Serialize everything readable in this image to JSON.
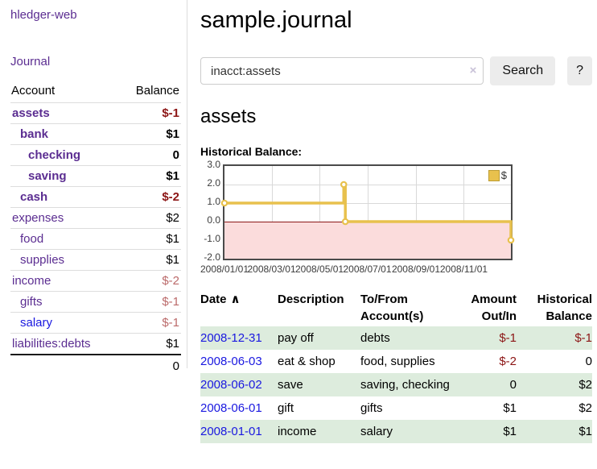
{
  "colors": {
    "purple": "#5b2d91",
    "blue": "#1a18e0",
    "negstrong": "#8c1515",
    "negsoft": "#bb6a6a",
    "rowgreen": "#ddecdd",
    "gold": "#e8c14d",
    "goldborder": "#bd9d33",
    "pink": "#fbdcdc",
    "zeroline": "#8b1717",
    "grid": "#d9d9d9",
    "chartborder": "#4a4a4a",
    "btn": "#ececec",
    "inputborder": "#cccccc",
    "divider": "#dddddd",
    "clearx": "#c9c2d8"
  },
  "sidebar": {
    "brand": "hledger-web",
    "journal_link": "Journal",
    "accounts_header": {
      "account": "Account",
      "balance": "Balance"
    },
    "accounts": [
      {
        "name": "assets",
        "balance": "$-1",
        "depth": 1,
        "matched": true,
        "balance_tone": "neg-strong",
        "link_tone": "purple"
      },
      {
        "name": "bank",
        "balance": "$1",
        "depth": 2,
        "matched": true,
        "balance_tone": "normal",
        "link_tone": "purple"
      },
      {
        "name": "checking",
        "balance": "0",
        "depth": 3,
        "matched": true,
        "balance_tone": "normal",
        "link_tone": "purple"
      },
      {
        "name": "saving",
        "balance": "$1",
        "depth": 3,
        "matched": true,
        "balance_tone": "normal",
        "link_tone": "purple"
      },
      {
        "name": "cash",
        "balance": "$-2",
        "depth": 2,
        "matched": true,
        "balance_tone": "neg-strong",
        "link_tone": "purple"
      },
      {
        "name": "expenses",
        "balance": "$2",
        "depth": 1,
        "matched": false,
        "balance_tone": "normal",
        "link_tone": "purple"
      },
      {
        "name": "food",
        "balance": "$1",
        "depth": 2,
        "matched": false,
        "balance_tone": "normal",
        "link_tone": "purple"
      },
      {
        "name": "supplies",
        "balance": "$1",
        "depth": 2,
        "matched": false,
        "balance_tone": "normal",
        "link_tone": "purple"
      },
      {
        "name": "income",
        "balance": "$-2",
        "depth": 1,
        "matched": false,
        "balance_tone": "neg-soft",
        "link_tone": "purple"
      },
      {
        "name": "gifts",
        "balance": "$-1",
        "depth": 2,
        "matched": false,
        "balance_tone": "neg-soft",
        "link_tone": "purple"
      },
      {
        "name": "salary",
        "balance": "$-1",
        "depth": 2,
        "matched": false,
        "balance_tone": "neg-soft",
        "link_tone": "blue"
      },
      {
        "name": "liabilities:debts",
        "balance": "$1",
        "depth": 1,
        "matched": false,
        "balance_tone": "normal",
        "link_tone": "purple"
      }
    ],
    "total": "0"
  },
  "main": {
    "title": "sample.journal",
    "search": {
      "value": "inacct:assets",
      "clear_icon": "×",
      "button_label": "Search",
      "help_label": "?"
    },
    "account_heading": "assets",
    "chart_heading": "Historical Balance:"
  },
  "chart_data": {
    "type": "line",
    "step": true,
    "title": "Historical Balance:",
    "legend": {
      "label": "$",
      "position": "top-right"
    },
    "ylim": [
      -2,
      3
    ],
    "y_ticks": [
      3,
      2,
      1,
      0,
      -1,
      -2
    ],
    "y_tick_labels": [
      "3.0",
      "2.0",
      "1.0",
      "0.0",
      "-1.0",
      "-2.0"
    ],
    "x_ticks": [
      "2008/01/01",
      "2008/03/01",
      "2008/05/01",
      "2008/07/01",
      "2008/09/01",
      "2008/11/01"
    ],
    "x_range": [
      "2008-01-01",
      "2008-12-31"
    ],
    "grid": true,
    "negative_region_below": 0,
    "series": [
      {
        "name": "$",
        "points": [
          {
            "date": "2008-01-01",
            "value": 1
          },
          {
            "date": "2008-06-01",
            "value": 2
          },
          {
            "date": "2008-06-03",
            "value": 0
          },
          {
            "date": "2008-12-31",
            "value": -1
          }
        ]
      }
    ]
  },
  "register": {
    "headers": [
      {
        "label": "Date",
        "align": "left",
        "sort_icon": "∧"
      },
      {
        "label": "Description",
        "align": "left"
      },
      {
        "label": "To/From Account(s)",
        "align": "left"
      },
      {
        "label": "Amount Out/In",
        "align": "right"
      },
      {
        "label": "Historical Balance",
        "align": "right"
      }
    ],
    "rows": [
      {
        "date": "2008-12-31",
        "description": "pay off",
        "accounts": "debts",
        "amount": "$-1",
        "amount_tone": "neg",
        "balance": "$-1",
        "balance_tone": "neg",
        "shaded": true
      },
      {
        "date": "2008-06-03",
        "description": "eat & shop",
        "accounts": "food, supplies",
        "amount": "$-2",
        "amount_tone": "neg",
        "balance": "0",
        "balance_tone": "normal",
        "shaded": false
      },
      {
        "date": "2008-06-02",
        "description": "save",
        "accounts": "saving, checking",
        "amount": "0",
        "amount_tone": "normal",
        "balance": "$2",
        "balance_tone": "normal",
        "shaded": true
      },
      {
        "date": "2008-06-01",
        "description": "gift",
        "accounts": "gifts",
        "amount": "$1",
        "amount_tone": "normal",
        "balance": "$2",
        "balance_tone": "normal",
        "shaded": false
      },
      {
        "date": "2008-01-01",
        "description": "income",
        "accounts": "salary",
        "amount": "$1",
        "amount_tone": "normal",
        "balance": "$1",
        "balance_tone": "normal",
        "shaded": true
      }
    ]
  }
}
